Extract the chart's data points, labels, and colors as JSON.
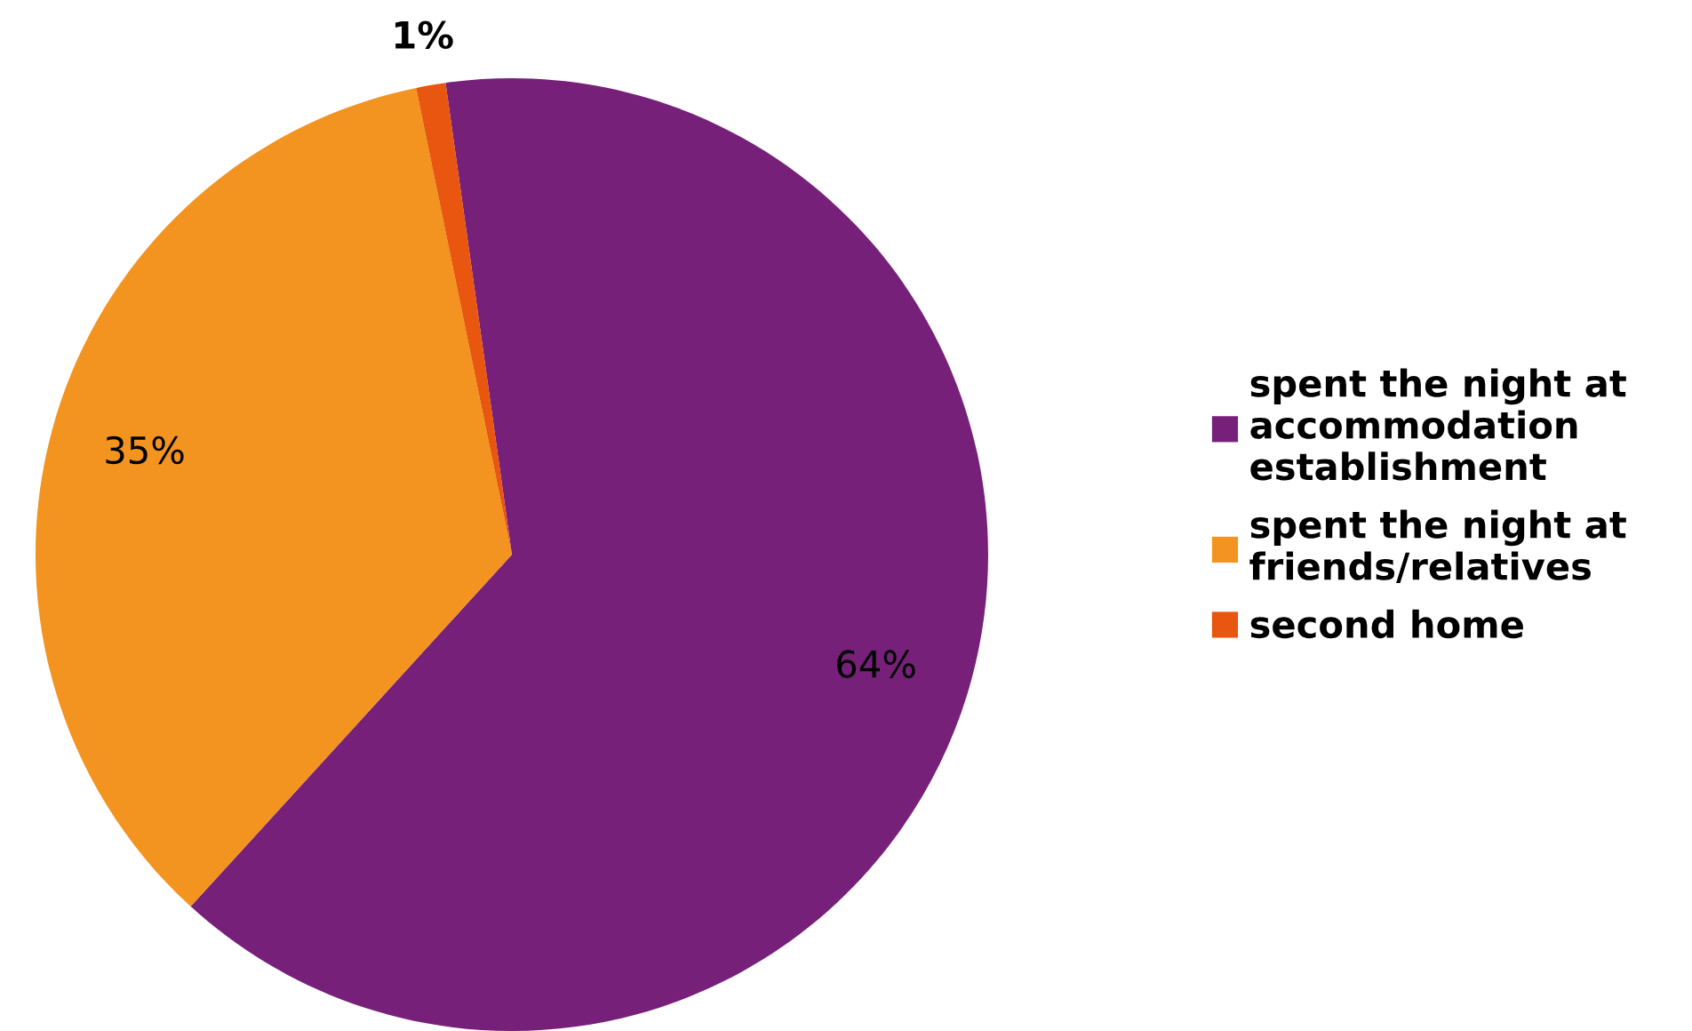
{
  "chart_data": {
    "type": "pie",
    "categories": [
      "spent the night at\naccommodation\nestablishment",
      "spent the night at\nfriends/relatives",
      "second home"
    ],
    "values": [
      64,
      35,
      1
    ],
    "colors": [
      "#77207a",
      "#f39320",
      "#e8560f"
    ],
    "value_labels": [
      "64%",
      "35%",
      "1%"
    ],
    "legend": "right"
  }
}
